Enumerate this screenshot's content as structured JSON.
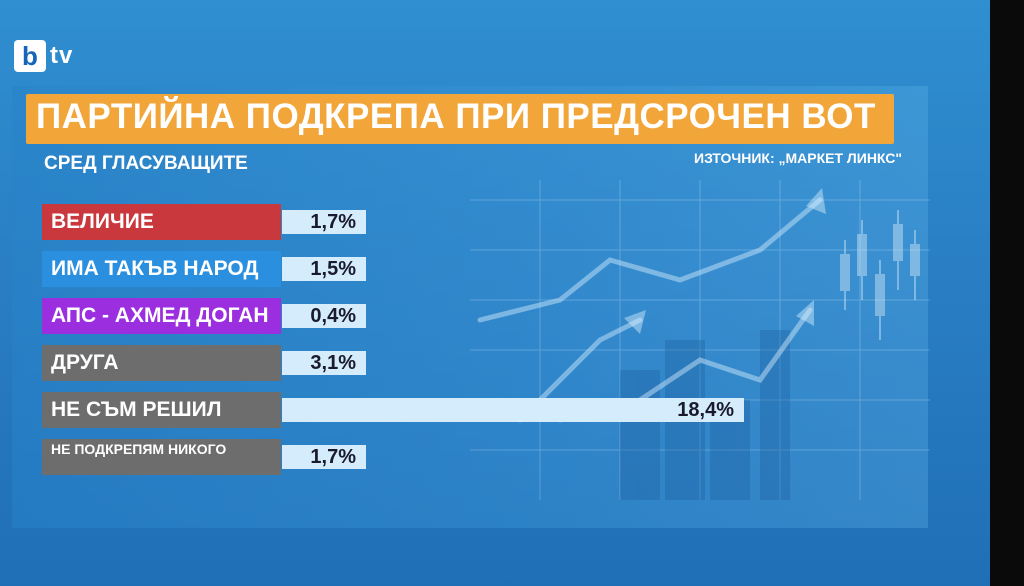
{
  "brand": {
    "logo_letter": "b",
    "logo_suffix": "tv"
  },
  "colors": {
    "title_bar": "#f2a63a",
    "bar_fill": "#d4ecfb",
    "label_red": "#c8383c",
    "label_blue": "#2b8fe0",
    "label_purple": "#9b2fe0",
    "label_gray": "#6d6d6d"
  },
  "chart_data": {
    "type": "bar",
    "title": "ПАРТИЙНА ПОДКРЕПА ПРИ ПРЕДСРОЧЕН ВОТ",
    "subtitle": "СРЕД ГЛАСУВАЩИТЕ",
    "source": "ИЗТОЧНИК: „МАРКЕТ ЛИНКС\"",
    "orientation": "horizontal",
    "categories": [
      "ВЕЛИЧИЕ",
      "ИМА ТАКЪВ НАРОД",
      "АПС - АХМЕД ДОГАН",
      "ДРУГА",
      "НЕ СЪМ РЕШИЛ",
      "НЕ ПОДКРЕПЯМ НИКОГО"
    ],
    "values": [
      1.7,
      1.5,
      0.4,
      3.1,
      18.4,
      1.7
    ],
    "value_labels": [
      "1,7%",
      "1,5%",
      "0,4%",
      "3,1%",
      "18,4%",
      "1,7%"
    ],
    "label_colors": [
      "#c8383c",
      "#2b8fe0",
      "#9b2fe0",
      "#6d6d6d",
      "#6d6d6d",
      "#6d6d6d"
    ],
    "xlim": [
      0,
      18.4
    ],
    "grid": false,
    "legend": "none"
  }
}
